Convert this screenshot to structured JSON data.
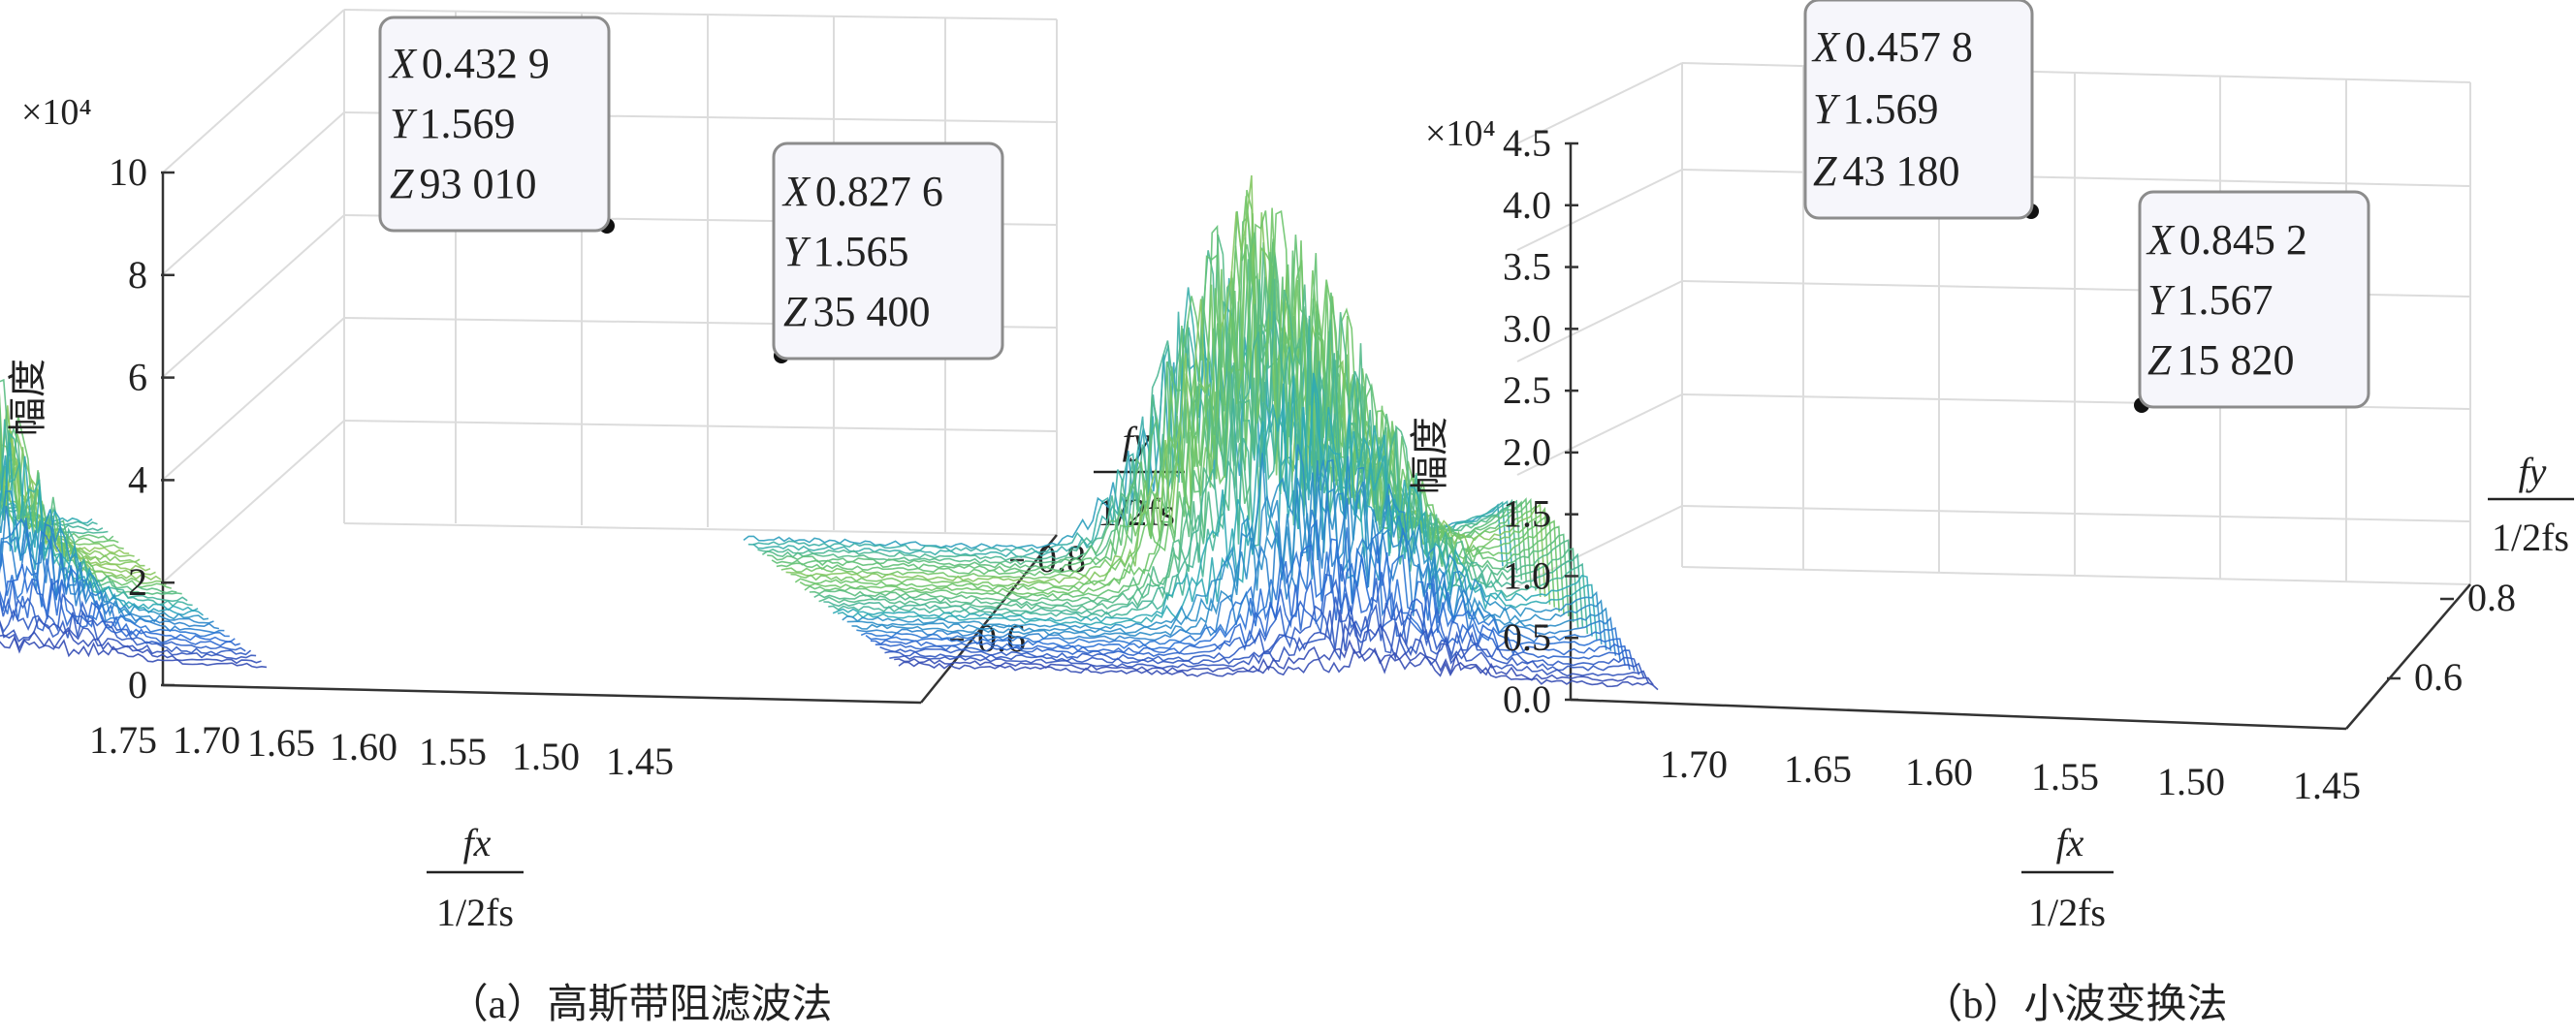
{
  "chart_data": [
    {
      "type": "surface",
      "caption": "（a）高斯带阻滤波法",
      "zlabel": "幅度",
      "z_exponent": "×10⁴",
      "z_ticks": [
        "0",
        "2",
        "4",
        "6",
        "8",
        "10"
      ],
      "fx_ticks": [
        "1.75",
        "1.70",
        "1.65",
        "1.60",
        "1.55",
        "1.50",
        "1.45"
      ],
      "fy_ticks": [
        "0.6",
        "0.8"
      ],
      "fx_label": {
        "num": "fx",
        "den": "1/2fs"
      },
      "fy_label": {
        "num": "fy",
        "den": "1/2fs"
      },
      "zlim": [
        0,
        100000
      ],
      "fx_range": [
        1.45,
        1.75
      ],
      "fy_range": [
        0.4,
        0.9
      ],
      "peak_fx": [
        1.585,
        1.53
      ],
      "peak_level": [
        70000,
        45000
      ],
      "annotations": [
        {
          "X": "0.432 9",
          "Y": "1.569",
          "Z": "93 010"
        },
        {
          "X": "0.827 6",
          "Y": "1.565",
          "Z": "35 400"
        }
      ],
      "colormap": [
        "#3d2f98",
        "#2b6fd6",
        "#2ca9b8",
        "#6cc46a",
        "#e6d23a"
      ]
    },
    {
      "type": "surface",
      "caption": "（b）小波变换法",
      "zlabel": "幅度",
      "z_exponent": "×10⁴",
      "z_ticks": [
        "0.0",
        "0.5",
        "1.0",
        "1.5",
        "2.0",
        "2.5",
        "3.0",
        "3.5",
        "4.0",
        "4.5"
      ],
      "fx_ticks": [
        "1.70",
        "1.65",
        "1.60",
        "1.55",
        "1.50",
        "1.45"
      ],
      "fy_ticks": [
        "0.6",
        "0.8"
      ],
      "fx_label": {
        "num": "fx",
        "den": "1/2fs"
      },
      "fy_label": {
        "num": "fy",
        "den": "1/2fs"
      },
      "zlim": [
        0,
        45000
      ],
      "fx_range": [
        1.45,
        1.72
      ],
      "fy_range": [
        0.4,
        0.9
      ],
      "peak_fx": [
        1.56,
        1.525
      ],
      "peak_level": [
        25000,
        15820
      ],
      "annotations": [
        {
          "X": "0.457 8",
          "Y": "1.569",
          "Z": "43 180"
        },
        {
          "X": "0.845 2",
          "Y": "1.567",
          "Z": "15 820"
        }
      ],
      "colormap": [
        "#3d2f98",
        "#2b6fd6",
        "#2ca9b8",
        "#6cc46a",
        "#e6d23a"
      ]
    }
  ]
}
